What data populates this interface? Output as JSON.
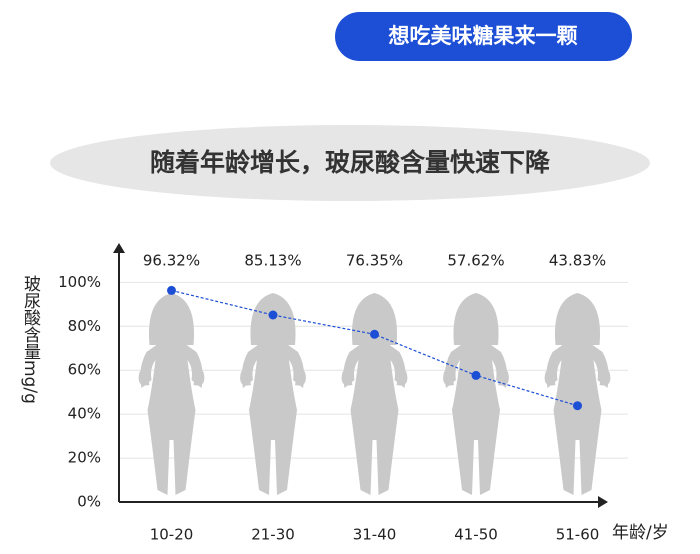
{
  "button": "想吃美味糖果来一颗",
  "chart_data": {
    "type": "line",
    "title": "随着年龄增长，玻尿酸含量快速下降",
    "y_label": "玻尿酸含量mg/g",
    "x_label": "年龄/岁",
    "categories": [
      "10-20",
      "21-30",
      "31-40",
      "41-50",
      "51-60"
    ],
    "series": [
      {
        "name": "玻尿酸含量",
        "color": "#1d4fd6",
        "values": [
          96.32,
          85.13,
          76.35,
          57.62,
          43.83
        ],
        "value_labels": [
          "96.32%",
          "85.13%",
          "76.35%",
          "57.62%",
          "43.83%"
        ]
      }
    ],
    "ylim": [
      0,
      117
    ],
    "yticks": [
      {
        "value": 0,
        "label": "0%"
      },
      {
        "value": 20,
        "label": "20%"
      },
      {
        "value": 40,
        "label": "40%"
      },
      {
        "value": 60,
        "label": "60%"
      },
      {
        "value": 80,
        "label": "80%"
      },
      {
        "value": 100,
        "label": "100%"
      }
    ],
    "grid": true
  }
}
